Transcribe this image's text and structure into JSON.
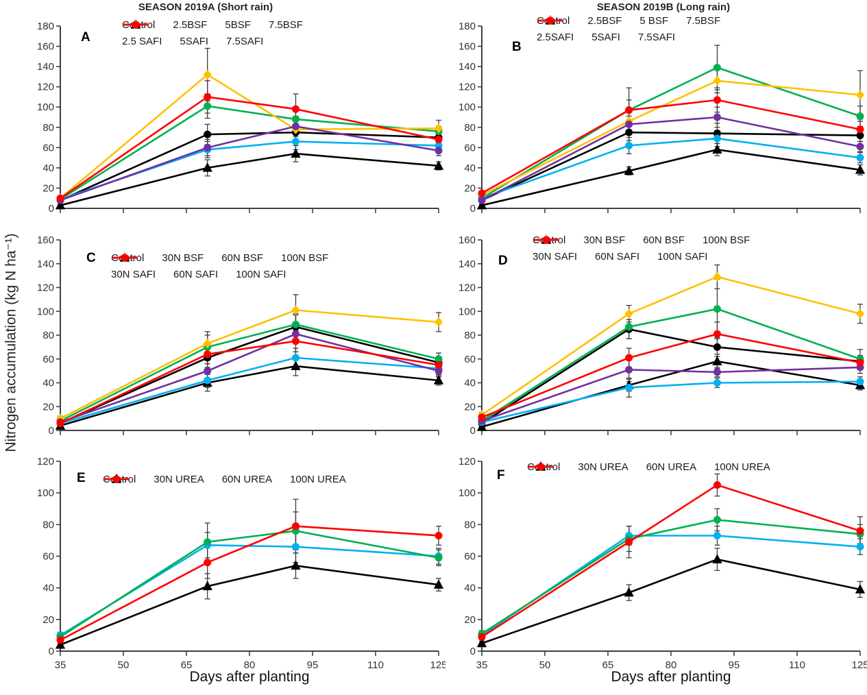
{
  "figure": {
    "ylabel": "Nitrogen accumulation (kg N ha⁻¹)",
    "xlabel": "Days after planting",
    "column_titles": [
      "SEASON 2019A (Short rain)",
      "SEASON 2019B  (Long rain)"
    ]
  },
  "chart_data": [
    {
      "id": "A",
      "type": "line",
      "title": "SEASON 2019A (Short rain)",
      "x": [
        35,
        70,
        91,
        125
      ],
      "xticks": [
        35,
        50,
        65,
        80,
        95,
        110,
        125
      ],
      "ylim": [
        0,
        180
      ],
      "ytick_step": 20,
      "legend_position": "top-inside",
      "series": [
        {
          "name": "Control",
          "color": "#000000",
          "marker": "triangle",
          "values": [
            3,
            40,
            54,
            42
          ],
          "err": [
            1,
            8,
            8,
            4
          ]
        },
        {
          "name": "2.5BSF",
          "color": "#000000",
          "marker": "circle",
          "values": [
            8,
            73,
            75,
            70
          ],
          "err": [
            2,
            10,
            8,
            5
          ]
        },
        {
          "name": "5BSF",
          "color": "#00B050",
          "marker": "circle",
          "values": [
            9,
            101,
            88,
            76
          ],
          "err": [
            2,
            12,
            10,
            5
          ]
        },
        {
          "name": "7.5BSF",
          "color": "#FFC000",
          "marker": "diamond",
          "values": [
            10,
            132,
            78,
            79
          ],
          "err": [
            2,
            26,
            10,
            8
          ]
        },
        {
          "name": "2.5 SAFI",
          "color": "#00B0F0",
          "marker": "circle",
          "values": [
            9,
            58,
            66,
            62
          ],
          "err": [
            2,
            8,
            8,
            5
          ]
        },
        {
          "name": "5SAFI",
          "color": "#7030A0",
          "marker": "circle",
          "values": [
            8,
            60,
            81,
            57
          ],
          "err": [
            2,
            8,
            10,
            5
          ]
        },
        {
          "name": "7.5SAFI",
          "color": "#FF0000",
          "marker": "circle",
          "values": [
            10,
            110,
            98,
            68
          ],
          "err": [
            2,
            16,
            15,
            6
          ]
        }
      ]
    },
    {
      "id": "B",
      "type": "line",
      "title": "SEASON 2019B (Long rain)",
      "x": [
        35,
        70,
        91,
        125
      ],
      "xticks": [
        35,
        50,
        65,
        80,
        95,
        110,
        125
      ],
      "ylim": [
        0,
        180
      ],
      "ytick_step": 20,
      "legend_position": "top-inside",
      "series": [
        {
          "name": "Control",
          "color": "#000000",
          "marker": "triangle",
          "values": [
            3,
            37,
            58,
            38
          ],
          "err": [
            1,
            4,
            6,
            5
          ]
        },
        {
          "name": "2.5BSF",
          "color": "#000000",
          "marker": "circle",
          "values": [
            8,
            75,
            74,
            72
          ],
          "err": [
            2,
            8,
            10,
            6
          ]
        },
        {
          "name": "5 BSF",
          "color": "#00B050",
          "marker": "circle",
          "values": [
            10,
            97,
            139,
            91
          ],
          "err": [
            2,
            10,
            22,
            10
          ]
        },
        {
          "name": "7.5BSF",
          "color": "#FFC000",
          "marker": "diamond",
          "values": [
            13,
            86,
            126,
            112
          ],
          "err": [
            2,
            10,
            12,
            24
          ]
        },
        {
          "name": "2.5SAFI",
          "color": "#00B0F0",
          "marker": "circle",
          "values": [
            10,
            62,
            69,
            50
          ],
          "err": [
            2,
            8,
            8,
            5
          ]
        },
        {
          "name": "5SAFI",
          "color": "#7030A0",
          "marker": "circle",
          "values": [
            8,
            83,
            90,
            61
          ],
          "err": [
            2,
            8,
            10,
            5
          ]
        },
        {
          "name": "7.5SAFI",
          "color": "#FF0000",
          "marker": "circle",
          "values": [
            15,
            97,
            107,
            78
          ],
          "err": [
            2,
            22,
            12,
            8
          ]
        }
      ]
    },
    {
      "id": "C",
      "type": "line",
      "x": [
        35,
        70,
        91,
        125
      ],
      "xticks": [
        35,
        50,
        65,
        80,
        95,
        110,
        125
      ],
      "ylim": [
        0,
        160
      ],
      "ytick_step": 20,
      "legend_position": "top-inside",
      "series": [
        {
          "name": "Control",
          "color": "#000000",
          "marker": "triangle",
          "values": [
            4,
            40,
            54,
            42
          ],
          "err": [
            1,
            7,
            8,
            4
          ]
        },
        {
          "name": "30N BSF",
          "color": "#000000",
          "marker": "circle",
          "values": [
            6,
            61,
            87,
            57
          ],
          "err": [
            2,
            8,
            10,
            5
          ]
        },
        {
          "name": "60N BSF",
          "color": "#00B050",
          "marker": "circle",
          "values": [
            8,
            70,
            89,
            60
          ],
          "err": [
            2,
            10,
            9,
            5
          ]
        },
        {
          "name": "100N BSF",
          "color": "#FFC000",
          "marker": "diamond",
          "values": [
            10,
            73,
            101,
            91
          ],
          "err": [
            2,
            10,
            13,
            8
          ]
        },
        {
          "name": "30N SAFI",
          "color": "#00B0F0",
          "marker": "circle",
          "values": [
            6,
            42,
            61,
            52
          ],
          "err": [
            2,
            6,
            8,
            5
          ]
        },
        {
          "name": "60N SAFI",
          "color": "#7030A0",
          "marker": "circle",
          "values": [
            7,
            50,
            81,
            50
          ],
          "err": [
            2,
            6,
            8,
            5
          ]
        },
        {
          "name": "100N SAFI",
          "color": "#FF0000",
          "marker": "circle",
          "values": [
            6,
            64,
            75,
            55
          ],
          "err": [
            2,
            8,
            9,
            5
          ]
        }
      ]
    },
    {
      "id": "D",
      "type": "line",
      "x": [
        35,
        70,
        91,
        125
      ],
      "xticks": [
        35,
        50,
        65,
        80,
        95,
        110,
        125
      ],
      "ylim": [
        0,
        160
      ],
      "ytick_step": 20,
      "legend_position": "top-inside",
      "series": [
        {
          "name": "Control",
          "color": "#000000",
          "marker": "triangle",
          "values": [
            3,
            38,
            58,
            38
          ],
          "err": [
            1,
            5,
            6,
            4
          ]
        },
        {
          "name": "30N BSF",
          "color": "#000000",
          "marker": "circle",
          "values": [
            6,
            85,
            70,
            58
          ],
          "err": [
            2,
            8,
            8,
            5
          ]
        },
        {
          "name": "60N BSF",
          "color": "#00B050",
          "marker": "circle",
          "values": [
            8,
            87,
            102,
            60
          ],
          "err": [
            2,
            10,
            25,
            8
          ]
        },
        {
          "name": "100N BSF",
          "color": "#FFC000",
          "marker": "diamond",
          "values": [
            13,
            98,
            129,
            98
          ],
          "err": [
            2,
            7,
            10,
            8
          ]
        },
        {
          "name": "30N SAFI",
          "color": "#00B0F0",
          "marker": "circle",
          "values": [
            7,
            36,
            40,
            41
          ],
          "err": [
            2,
            8,
            4,
            4
          ]
        },
        {
          "name": "60N SAFI",
          "color": "#7030A0",
          "marker": "circle",
          "values": [
            8,
            51,
            49,
            53
          ],
          "err": [
            2,
            10,
            4,
            5
          ]
        },
        {
          "name": "100N SAFI",
          "color": "#FF0000",
          "marker": "circle",
          "values": [
            11,
            61,
            81,
            57
          ],
          "err": [
            2,
            8,
            10,
            5
          ]
        }
      ]
    },
    {
      "id": "E",
      "type": "line",
      "x": [
        35,
        70,
        91,
        125
      ],
      "xticks": [
        35,
        50,
        65,
        80,
        95,
        110,
        125
      ],
      "ylim": [
        0,
        120
      ],
      "ytick_step": 20,
      "legend_position": "top-inside",
      "series": [
        {
          "name": "Control",
          "color": "#000000",
          "marker": "triangle",
          "values": [
            4,
            41,
            54,
            42
          ],
          "err": [
            1,
            8,
            8,
            4
          ]
        },
        {
          "name": "30N UREA",
          "color": "#00B0F0",
          "marker": "circle",
          "values": [
            10,
            67,
            66,
            60
          ],
          "err": [
            2,
            8,
            10,
            5
          ]
        },
        {
          "name": "60N UREA",
          "color": "#00B050",
          "marker": "circle",
          "values": [
            9,
            69,
            76,
            59
          ],
          "err": [
            2,
            12,
            12,
            5
          ]
        },
        {
          "name": "100N UREA",
          "color": "#FF0000",
          "marker": "circle",
          "values": [
            7,
            56,
            79,
            73
          ],
          "err": [
            2,
            10,
            17,
            6
          ]
        }
      ]
    },
    {
      "id": "F",
      "type": "line",
      "x": [
        35,
        70,
        91,
        125
      ],
      "xticks": [
        35,
        50,
        65,
        80,
        95,
        110,
        125
      ],
      "ylim": [
        0,
        120
      ],
      "ytick_step": 20,
      "legend_position": "top-inside",
      "series": [
        {
          "name": "Control",
          "color": "#000000",
          "marker": "triangle",
          "values": [
            5,
            37,
            58,
            39
          ],
          "err": [
            1,
            5,
            7,
            5
          ]
        },
        {
          "name": "30N UREA",
          "color": "#00B0F0",
          "marker": "circle",
          "values": [
            10,
            73,
            73,
            66
          ],
          "err": [
            2,
            6,
            6,
            5
          ]
        },
        {
          "name": "60N UREA",
          "color": "#00B050",
          "marker": "circle",
          "values": [
            11,
            71,
            83,
            74
          ],
          "err": [
            2,
            8,
            7,
            6
          ]
        },
        {
          "name": "100N UREA",
          "color": "#FF0000",
          "marker": "circle",
          "values": [
            9,
            69,
            105,
            76
          ],
          "err": [
            2,
            10,
            7,
            9
          ]
        }
      ]
    }
  ]
}
